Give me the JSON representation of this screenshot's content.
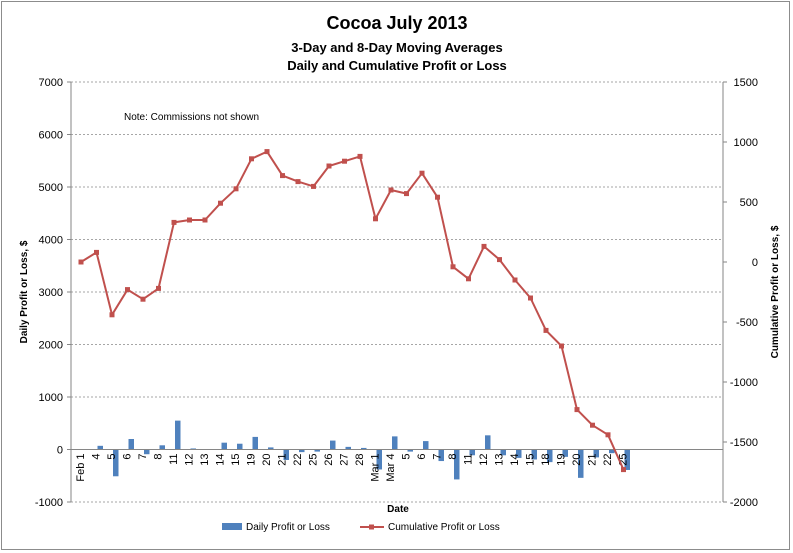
{
  "chart_data": {
    "type": "bar+line",
    "title": "Cocoa July 2013",
    "subtitle1": "3-Day and 8-Day Moving Averages",
    "subtitle2": "Daily and Cumulative  Profit or Loss",
    "note": "Note: Commissions not shown",
    "xlabel": "Date",
    "ylabel_left": "Daily Profit or Loss, $",
    "ylabel_right": "Cumulative Profit or Loss, $",
    "ylim_left": [
      -1000,
      7000
    ],
    "ylim_right": [
      -2000,
      1500
    ],
    "yticks_left": [
      -1000,
      0,
      1000,
      2000,
      3000,
      4000,
      5000,
      6000,
      7000
    ],
    "yticks_right": [
      -2000,
      -1500,
      -1000,
      -500,
      0,
      500,
      1000,
      1500
    ],
    "grid": true,
    "legend_position": "bottom",
    "colors": {
      "bar": "#4f81bd",
      "line": "#c0504d",
      "grid": "#a6a6a6"
    },
    "categories": [
      "Feb 1",
      "4",
      "5",
      "6",
      "7",
      "8",
      "11",
      "12",
      "13",
      "14",
      "15",
      "19",
      "20",
      "21",
      "22",
      "25",
      "26",
      "27",
      "28",
      "Mar 1",
      "Mar 4",
      "5",
      "6",
      "7",
      "8",
      "11",
      "12",
      "13",
      "14",
      "15",
      "18",
      "19",
      "20",
      "21",
      "22",
      "25"
    ],
    "series": [
      {
        "name": "Daily Profit or Loss",
        "type": "bar",
        "axis": "left",
        "values": [
          0,
          70,
          -510,
          200,
          -90,
          80,
          550,
          20,
          0,
          130,
          110,
          240,
          40,
          -200,
          -50,
          -40,
          170,
          50,
          30,
          -380,
          250,
          -40,
          160,
          -220,
          -570,
          -110,
          270,
          -110,
          -160,
          -190,
          -240,
          -140,
          -540,
          -150,
          -70,
          -390
        ]
      },
      {
        "name": "Cumulative Profit or Loss",
        "type": "line",
        "axis": "right",
        "values": [
          0,
          80,
          -440,
          -230,
          -310,
          -220,
          330,
          350,
          350,
          490,
          610,
          860,
          920,
          720,
          670,
          630,
          800,
          840,
          880,
          360,
          600,
          570,
          740,
          540,
          -40,
          -140,
          130,
          20,
          -150,
          -300,
          -570,
          -700,
          -1230,
          -1360,
          -1440,
          -1730
        ]
      }
    ]
  }
}
